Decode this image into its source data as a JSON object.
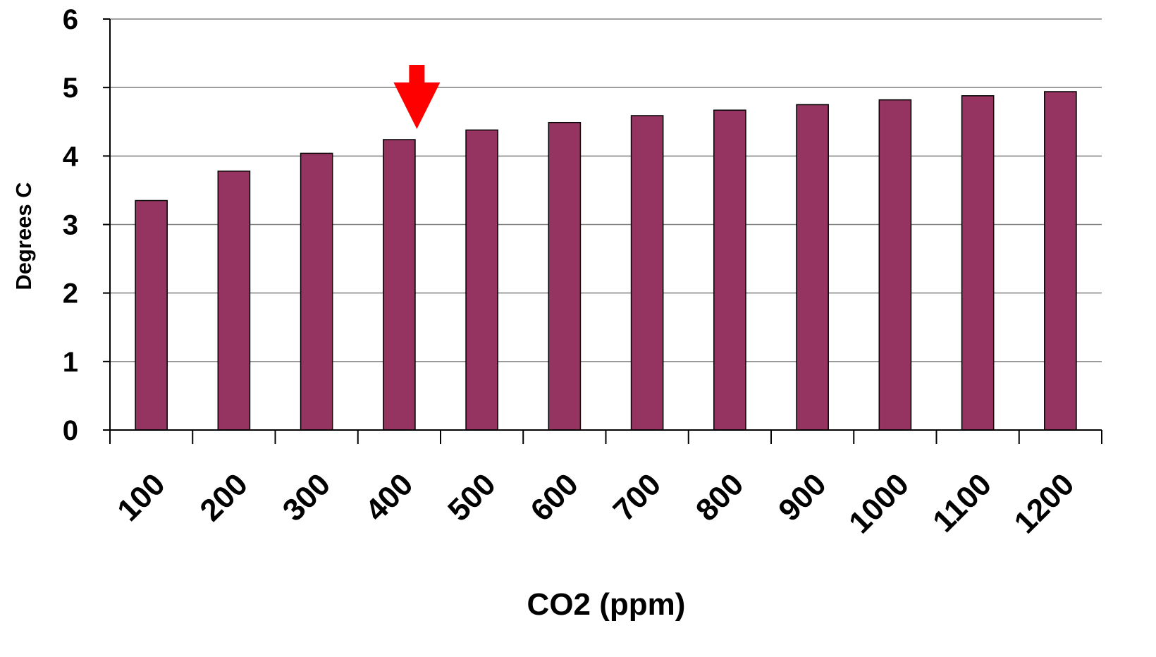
{
  "chart_data": {
    "type": "bar",
    "title": "",
    "xlabel": "CO2 (ppm)",
    "ylabel": "Degrees C",
    "categories": [
      "100",
      "200",
      "300",
      "400",
      "500",
      "600",
      "700",
      "800",
      "900",
      "1000",
      "1100",
      "1200"
    ],
    "values": [
      3.35,
      3.78,
      4.04,
      4.24,
      4.38,
      4.49,
      4.59,
      4.67,
      4.75,
      4.82,
      4.88,
      4.94
    ],
    "ylim": [
      0,
      6
    ],
    "yticks": [
      "0",
      "1",
      "2",
      "3",
      "4",
      "5",
      "6"
    ],
    "grid": true,
    "legend": "none",
    "annotation": {
      "type": "arrow",
      "icon": "down-arrow-icon",
      "points_at_category": "400",
      "color": "#ff0000"
    }
  },
  "colors": {
    "bar_fill": "#953461",
    "bar_stroke": "#000000",
    "gridline": "#808080",
    "axis": "#000000",
    "arrow": "#ff0000"
  }
}
